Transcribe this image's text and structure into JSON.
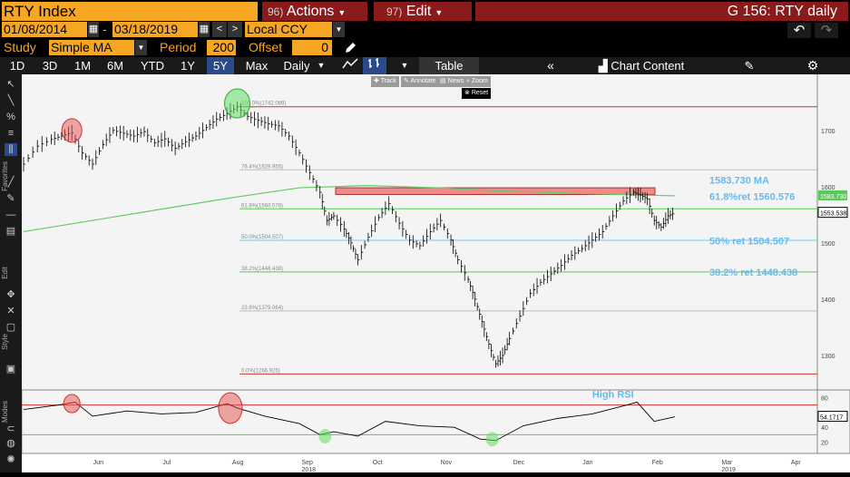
{
  "titlebar": {
    "security": "RTY Index",
    "actions_num": "96)",
    "actions_label": "Actions",
    "edit_num": "97)",
    "edit_label": "Edit",
    "right_title": "G 156: RTY daily"
  },
  "daterow": {
    "start_date": "01/08/2014",
    "dash": "-",
    "end_date": "03/18/2019",
    "currency": "Local CCY",
    "back": "↶",
    "forward": "↷"
  },
  "studyrow": {
    "study_label": "Study",
    "study_value": "Simple MA",
    "period_label": "Period",
    "period_value": "200",
    "offset_label": "Offset",
    "offset_value": "0"
  },
  "timeframes": [
    {
      "label": "1D"
    },
    {
      "label": "3D"
    },
    {
      "label": "1M"
    },
    {
      "label": "6M"
    },
    {
      "label": "YTD"
    },
    {
      "label": "1Y"
    },
    {
      "label": "5Y",
      "active": true
    },
    {
      "label": "Max"
    },
    {
      "label": "Daily"
    }
  ],
  "toolbar": {
    "table_label": "Table",
    "chart_content_label": "Chart Content"
  },
  "mini_toolbar": [
    "Track",
    "Annotate",
    "News",
    "Zoom"
  ],
  "reset_label": "Reset",
  "sidebar_labels": {
    "favorites": "Favorites",
    "edit": "Edit",
    "style": "Style",
    "modes": "Modes"
  },
  "colors": {
    "accent_orange": "#f5a623",
    "header_red": "#8b1a1a",
    "ma_green": "#66cc66",
    "resistance_line": "#cc3333",
    "support_band": "#ee7777",
    "fib_50": "#66ccee"
  },
  "annotations": {
    "ma_label": "1583.730 MA",
    "fib618_label": "61.8%ret 1560.576",
    "fib50_label": "50% ret 1504.507",
    "fib382_label": "38.2% ret 1448.438",
    "high_rsi": "High RSI"
  },
  "fib_levels": [
    {
      "label": "100.0%(1742.089)",
      "value": 1742.089
    },
    {
      "label": "76.4%(1629.955)",
      "value": 1629.955
    },
    {
      "label": "61.8%(1560.576)",
      "value": 1560.576
    },
    {
      "label": "50.0%(1504.507)",
      "value": 1504.507
    },
    {
      "label": "38.2%(1448.438)",
      "value": 1448.438
    },
    {
      "label": "23.6%(1379.064)",
      "value": 1379.064
    },
    {
      "label": "0.0%(1266.925)",
      "value": 1266.925
    }
  ],
  "chart_data": {
    "type": "line",
    "title": "",
    "x_ticks": [
      "Jun",
      "Jul",
      "Aug",
      "Sep",
      "Oct",
      "Nov",
      "Dec",
      "Jan",
      "Feb",
      "Mar",
      "Apr"
    ],
    "year_labels": [
      {
        "label": "2018",
        "month": "Sep"
      },
      {
        "label": "2019",
        "month": "Mar"
      }
    ],
    "price_axis": {
      "ticks": [
        1300,
        1400,
        1500,
        1600,
        1700
      ],
      "ylim": [
        1245,
        1790
      ]
    },
    "price_axis_tags": {
      "ma": "1583.730",
      "last": "1553.538"
    },
    "rsi_axis": {
      "ticks": [
        20,
        40,
        60,
        80
      ],
      "ylim": [
        12,
        88
      ],
      "last": "54.1717"
    },
    "price_series": [
      {
        "x": 0,
        "y": 1640
      },
      {
        "x": 8,
        "y": 1672
      },
      {
        "x": 16,
        "y": 1684
      },
      {
        "x": 22,
        "y": 1690
      },
      {
        "x": 28,
        "y": 1696
      },
      {
        "x": 34,
        "y": 1660
      },
      {
        "x": 40,
        "y": 1640
      },
      {
        "x": 46,
        "y": 1675
      },
      {
        "x": 52,
        "y": 1700
      },
      {
        "x": 58,
        "y": 1695
      },
      {
        "x": 64,
        "y": 1690
      },
      {
        "x": 70,
        "y": 1698
      },
      {
        "x": 76,
        "y": 1678
      },
      {
        "x": 82,
        "y": 1685
      },
      {
        "x": 88,
        "y": 1668
      },
      {
        "x": 94,
        "y": 1680
      },
      {
        "x": 100,
        "y": 1690
      },
      {
        "x": 106,
        "y": 1705
      },
      {
        "x": 112,
        "y": 1720
      },
      {
        "x": 118,
        "y": 1730
      },
      {
        "x": 124,
        "y": 1742
      },
      {
        "x": 130,
        "y": 1725
      },
      {
        "x": 136,
        "y": 1718
      },
      {
        "x": 142,
        "y": 1712
      },
      {
        "x": 148,
        "y": 1708
      },
      {
        "x": 154,
        "y": 1690
      },
      {
        "x": 160,
        "y": 1660
      },
      {
        "x": 166,
        "y": 1625
      },
      {
        "x": 172,
        "y": 1590
      },
      {
        "x": 176,
        "y": 1540
      },
      {
        "x": 180,
        "y": 1548
      },
      {
        "x": 186,
        "y": 1525
      },
      {
        "x": 190,
        "y": 1500
      },
      {
        "x": 194,
        "y": 1470
      },
      {
        "x": 200,
        "y": 1510
      },
      {
        "x": 206,
        "y": 1545
      },
      {
        "x": 212,
        "y": 1570
      },
      {
        "x": 218,
        "y": 1535
      },
      {
        "x": 224,
        "y": 1505
      },
      {
        "x": 230,
        "y": 1495
      },
      {
        "x": 236,
        "y": 1520
      },
      {
        "x": 242,
        "y": 1540
      },
      {
        "x": 248,
        "y": 1505
      },
      {
        "x": 252,
        "y": 1470
      },
      {
        "x": 258,
        "y": 1435
      },
      {
        "x": 262,
        "y": 1400
      },
      {
        "x": 266,
        "y": 1360
      },
      {
        "x": 270,
        "y": 1320
      },
      {
        "x": 274,
        "y": 1285
      },
      {
        "x": 278,
        "y": 1300
      },
      {
        "x": 282,
        "y": 1330
      },
      {
        "x": 288,
        "y": 1370
      },
      {
        "x": 294,
        "y": 1410
      },
      {
        "x": 300,
        "y": 1430
      },
      {
        "x": 306,
        "y": 1445
      },
      {
        "x": 312,
        "y": 1460
      },
      {
        "x": 318,
        "y": 1478
      },
      {
        "x": 324,
        "y": 1490
      },
      {
        "x": 330,
        "y": 1505
      },
      {
        "x": 336,
        "y": 1520
      },
      {
        "x": 342,
        "y": 1548
      },
      {
        "x": 348,
        "y": 1575
      },
      {
        "x": 354,
        "y": 1590
      },
      {
        "x": 358,
        "y": 1585
      },
      {
        "x": 362,
        "y": 1578
      },
      {
        "x": 366,
        "y": 1540
      },
      {
        "x": 370,
        "y": 1528
      },
      {
        "x": 374,
        "y": 1548
      },
      {
        "x": 378,
        "y": 1553.538
      }
    ],
    "ma_series": [
      {
        "x": 0,
        "y": 1520
      },
      {
        "x": 40,
        "y": 1540
      },
      {
        "x": 80,
        "y": 1560
      },
      {
        "x": 120,
        "y": 1580
      },
      {
        "x": 160,
        "y": 1598
      },
      {
        "x": 200,
        "y": 1602
      },
      {
        "x": 240,
        "y": 1598
      },
      {
        "x": 280,
        "y": 1592
      },
      {
        "x": 320,
        "y": 1588
      },
      {
        "x": 360,
        "y": 1585
      },
      {
        "x": 378,
        "y": 1583.73
      }
    ],
    "rsi_series": [
      {
        "x": 0,
        "y": 64
      },
      {
        "x": 20,
        "y": 70
      },
      {
        "x": 30,
        "y": 74
      },
      {
        "x": 40,
        "y": 55
      },
      {
        "x": 60,
        "y": 62
      },
      {
        "x": 80,
        "y": 58
      },
      {
        "x": 100,
        "y": 60
      },
      {
        "x": 118,
        "y": 72
      },
      {
        "x": 124,
        "y": 66
      },
      {
        "x": 140,
        "y": 55
      },
      {
        "x": 160,
        "y": 45
      },
      {
        "x": 172,
        "y": 30
      },
      {
        "x": 180,
        "y": 34
      },
      {
        "x": 194,
        "y": 28
      },
      {
        "x": 210,
        "y": 48
      },
      {
        "x": 230,
        "y": 42
      },
      {
        "x": 250,
        "y": 40
      },
      {
        "x": 265,
        "y": 24
      },
      {
        "x": 274,
        "y": 22
      },
      {
        "x": 290,
        "y": 42
      },
      {
        "x": 310,
        "y": 52
      },
      {
        "x": 330,
        "y": 58
      },
      {
        "x": 350,
        "y": 70
      },
      {
        "x": 356,
        "y": 74
      },
      {
        "x": 366,
        "y": 48
      },
      {
        "x": 378,
        "y": 54.17
      }
    ]
  }
}
